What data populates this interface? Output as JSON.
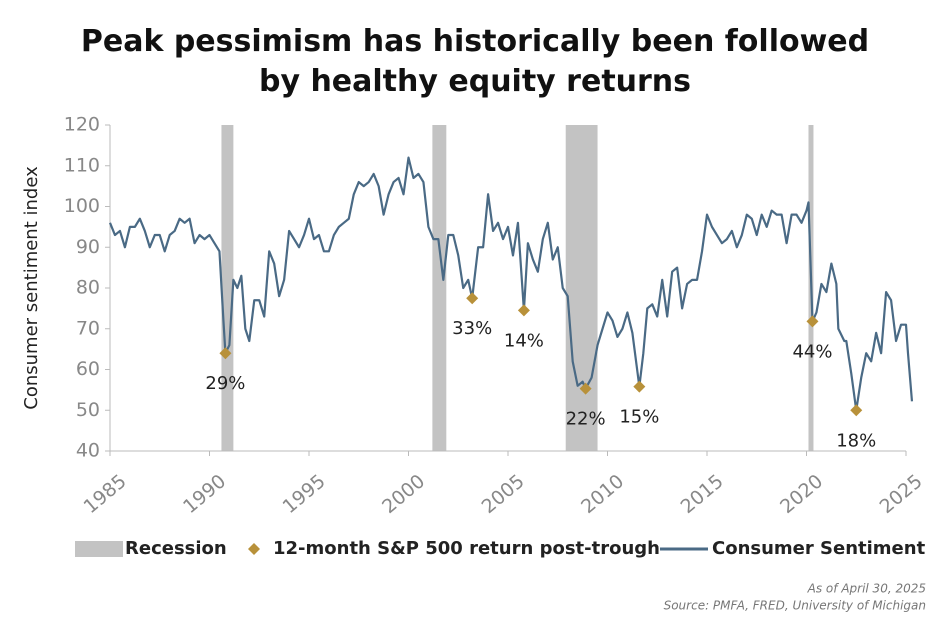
{
  "chart_data": {
    "type": "line",
    "title": "Peak pessimism has historically been followed by healthy equity returns",
    "y_label": "Consumer sentiment index",
    "notes": [
      "As of April 30, 2025",
      "Source: PMFA, FRED, University of Michigan"
    ],
    "xlim": [
      1985,
      2025
    ],
    "xticks": [
      1985,
      1990,
      1995,
      2000,
      2005,
      2010,
      2015,
      2020,
      2025
    ],
    "ylim": [
      40,
      120
    ],
    "yticks": [
      40,
      50,
      60,
      70,
      80,
      90,
      100,
      110,
      120
    ],
    "recession": {
      "name": "Recession",
      "color": "#c3c3c3",
      "periods": [
        [
          1990.6,
          1991.2
        ],
        [
          2001.2,
          2001.9
        ],
        [
          2007.9,
          2009.5
        ],
        [
          2020.1,
          2020.35
        ]
      ]
    },
    "markers": {
      "name": "12-month S&P 500 return post-trough",
      "color": "#b8913a",
      "points": [
        {
          "x": 1990.8,
          "y": 64,
          "label": "29%"
        },
        {
          "x": 2003.2,
          "y": 77.5,
          "label": "33%"
        },
        {
          "x": 2005.8,
          "y": 74.5,
          "label": "14%"
        },
        {
          "x": 2008.9,
          "y": 55.3,
          "label": "22%"
        },
        {
          "x": 2011.6,
          "y": 55.8,
          "label": "15%"
        },
        {
          "x": 2020.3,
          "y": 71.8,
          "label": "44%"
        },
        {
          "x": 2022.5,
          "y": 50,
          "label": "18%"
        }
      ]
    },
    "x": [
      1985,
      1985.25,
      1985.5,
      1985.75,
      1986,
      1986.25,
      1986.5,
      1986.75,
      1987,
      1987.25,
      1987.5,
      1987.75,
      1988,
      1988.25,
      1988.5,
      1988.75,
      1989,
      1989.25,
      1989.5,
      1989.75,
      1990,
      1990.25,
      1990.5,
      1990.7,
      1990.8,
      1991,
      1991.2,
      1991.4,
      1991.6,
      1991.8,
      1992,
      1992.25,
      1992.5,
      1992.75,
      1993,
      1993.25,
      1993.5,
      1993.75,
      1994,
      1994.25,
      1994.5,
      1994.75,
      1995,
      1995.25,
      1995.5,
      1995.75,
      1996,
      1996.25,
      1996.5,
      1996.75,
      1997,
      1997.25,
      1997.5,
      1997.75,
      1998,
      1998.25,
      1998.5,
      1998.75,
      1999,
      1999.25,
      1999.5,
      1999.75,
      2000,
      2000.25,
      2000.5,
      2000.75,
      2001,
      2001.25,
      2001.5,
      2001.75,
      2002,
      2002.25,
      2002.5,
      2002.75,
      2003,
      2003.2,
      2003.5,
      2003.75,
      2004,
      2004.25,
      2004.5,
      2004.75,
      2005,
      2005.25,
      2005.5,
      2005.8,
      2006,
      2006.25,
      2006.5,
      2006.75,
      2007,
      2007.25,
      2007.5,
      2007.75,
      2008,
      2008.25,
      2008.5,
      2008.75,
      2008.9,
      2009.2,
      2009.5,
      2009.75,
      2010,
      2010.25,
      2010.5,
      2010.75,
      2011,
      2011.25,
      2011.6,
      2011.8,
      2012,
      2012.25,
      2012.5,
      2012.75,
      2013,
      2013.25,
      2013.5,
      2013.75,
      2014,
      2014.25,
      2014.5,
      2014.75,
      2015,
      2015.25,
      2015.5,
      2015.75,
      2016,
      2016.25,
      2016.5,
      2016.75,
      2017,
      2017.25,
      2017.5,
      2017.75,
      2018,
      2018.25,
      2018.5,
      2018.75,
      2019,
      2019.25,
      2019.5,
      2019.75,
      2020,
      2020.1,
      2020.3,
      2020.5,
      2020.75,
      2021,
      2021.25,
      2021.5,
      2021.6,
      2021.9,
      2022,
      2022.25,
      2022.5,
      2022.75,
      2023,
      2023.25,
      2023.5,
      2023.75,
      2024,
      2024.25,
      2024.5,
      2024.75,
      2025,
      2025.1,
      2025.3
    ],
    "series": [
      {
        "name": "Consumer Sentiment",
        "color": "#4a6a85",
        "values": [
          96,
          93,
          94,
          90,
          95,
          95,
          97,
          94,
          90,
          93,
          93,
          89,
          93,
          94,
          97,
          96,
          97,
          91,
          93,
          92,
          93,
          91,
          89,
          72,
          64,
          66,
          82,
          80,
          83,
          70,
          67,
          77,
          77,
          73,
          89,
          86,
          78,
          82,
          94,
          92,
          90,
          93,
          97,
          92,
          93,
          89,
          89,
          93,
          95,
          96,
          97,
          103,
          106,
          105,
          106,
          108,
          105,
          98,
          103,
          106,
          107,
          103,
          112,
          107,
          108,
          106,
          95,
          92,
          92,
          82,
          93,
          93,
          88,
          80,
          82,
          77.5,
          90,
          90,
          103,
          94,
          96,
          92,
          95,
          88,
          96,
          74.5,
          91,
          87,
          84,
          92,
          96,
          87,
          90,
          80,
          78,
          62,
          56,
          57,
          55.3,
          58,
          66,
          70,
          74,
          72,
          68,
          70,
          74,
          69,
          55.8,
          64,
          75,
          76,
          73,
          82,
          73,
          84,
          85,
          75,
          81,
          82,
          82,
          89,
          98,
          95,
          93,
          91,
          92,
          94,
          90,
          93,
          98,
          97,
          93,
          98,
          95,
          99,
          98,
          98,
          91,
          98,
          98,
          96,
          99,
          101,
          71.8,
          74,
          81,
          79,
          86,
          81,
          70,
          67,
          67,
          59,
          50,
          58,
          64,
          62,
          69,
          64,
          79,
          77,
          67,
          71,
          71,
          64,
          52.2
        ]
      }
    ]
  }
}
